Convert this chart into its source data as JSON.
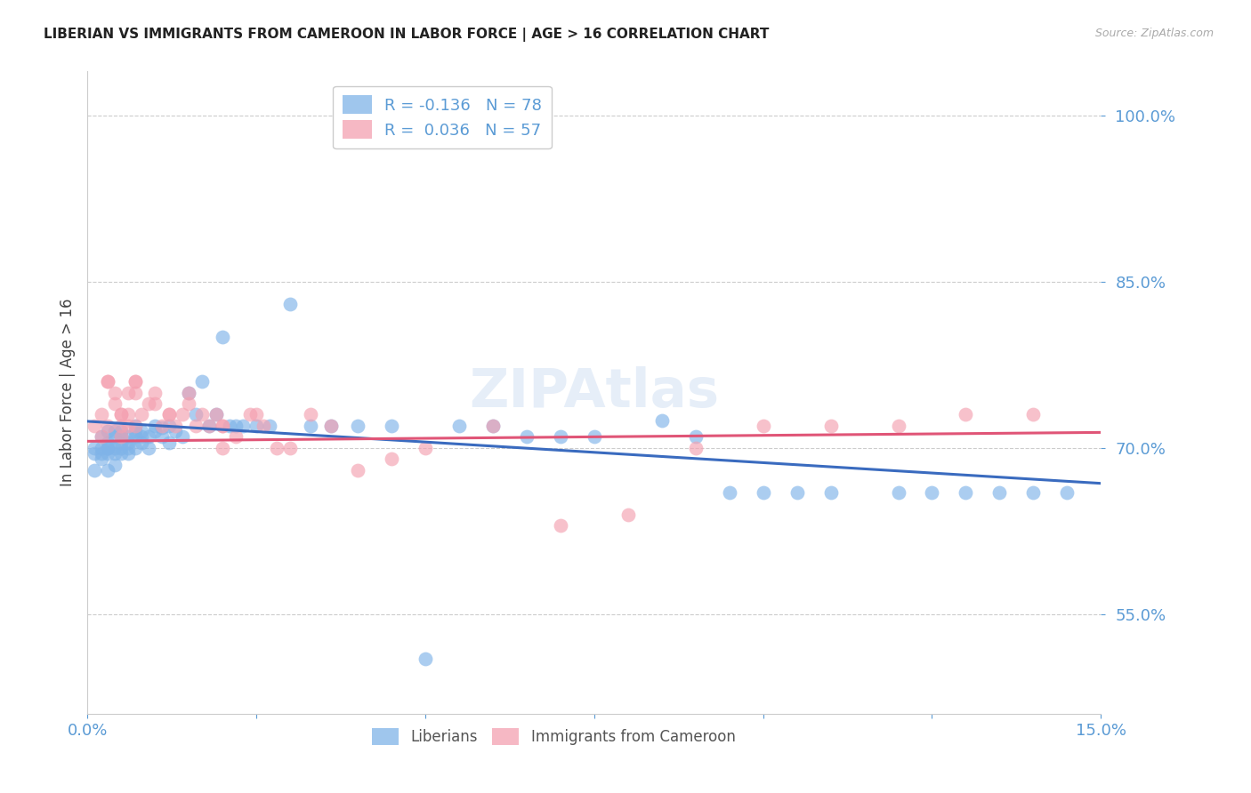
{
  "title": "LIBERIAN VS IMMIGRANTS FROM CAMEROON IN LABOR FORCE | AGE > 16 CORRELATION CHART",
  "source": "Source: ZipAtlas.com",
  "ylabel": "In Labor Force | Age > 16",
  "xlim": [
    0.0,
    0.15
  ],
  "ylim": [
    0.46,
    1.04
  ],
  "yticks": [
    0.55,
    0.7,
    0.85,
    1.0
  ],
  "ytick_labels": [
    "55.0%",
    "70.0%",
    "85.0%",
    "100.0%"
  ],
  "xticks": [
    0.0,
    0.025,
    0.05,
    0.075,
    0.1,
    0.125,
    0.15
  ],
  "watermark": "ZIPAtlas",
  "blue_color": "#7fb3e8",
  "pink_color": "#f4a0b0",
  "line_blue": "#3a6bbf",
  "line_pink": "#e05577",
  "axis_tick_color": "#5b9bd5",
  "grid_color": "#cccccc",
  "liberian_points_x": [
    0.001,
    0.001,
    0.001,
    0.002,
    0.002,
    0.002,
    0.002,
    0.003,
    0.003,
    0.003,
    0.003,
    0.003,
    0.003,
    0.004,
    0.004,
    0.004,
    0.004,
    0.004,
    0.005,
    0.005,
    0.005,
    0.005,
    0.005,
    0.006,
    0.006,
    0.006,
    0.006,
    0.007,
    0.007,
    0.007,
    0.007,
    0.008,
    0.008,
    0.008,
    0.009,
    0.009,
    0.01,
    0.01,
    0.011,
    0.011,
    0.012,
    0.012,
    0.013,
    0.014,
    0.015,
    0.016,
    0.017,
    0.018,
    0.019,
    0.02,
    0.021,
    0.022,
    0.023,
    0.025,
    0.027,
    0.03,
    0.033,
    0.036,
    0.04,
    0.045,
    0.05,
    0.055,
    0.06,
    0.065,
    0.07,
    0.075,
    0.085,
    0.09,
    0.095,
    0.1,
    0.105,
    0.11,
    0.12,
    0.125,
    0.13,
    0.135,
    0.14,
    0.145
  ],
  "liberian_points_y": [
    0.7,
    0.695,
    0.68,
    0.71,
    0.7,
    0.69,
    0.695,
    0.715,
    0.7,
    0.705,
    0.695,
    0.68,
    0.7,
    0.71,
    0.7,
    0.715,
    0.695,
    0.685,
    0.705,
    0.695,
    0.71,
    0.7,
    0.715,
    0.7,
    0.71,
    0.695,
    0.705,
    0.715,
    0.7,
    0.71,
    0.72,
    0.71,
    0.705,
    0.715,
    0.7,
    0.71,
    0.72,
    0.715,
    0.718,
    0.71,
    0.72,
    0.705,
    0.715,
    0.71,
    0.75,
    0.73,
    0.76,
    0.72,
    0.73,
    0.8,
    0.72,
    0.72,
    0.72,
    0.72,
    0.72,
    0.83,
    0.72,
    0.72,
    0.72,
    0.72,
    0.51,
    0.72,
    0.72,
    0.71,
    0.71,
    0.71,
    0.725,
    0.71,
    0.66,
    0.66,
    0.66,
    0.66,
    0.66,
    0.66,
    0.66,
    0.66,
    0.66,
    0.66
  ],
  "cameroon_points_x": [
    0.001,
    0.002,
    0.002,
    0.003,
    0.003,
    0.004,
    0.004,
    0.005,
    0.005,
    0.006,
    0.006,
    0.007,
    0.007,
    0.008,
    0.009,
    0.01,
    0.011,
    0.012,
    0.013,
    0.014,
    0.015,
    0.016,
    0.017,
    0.018,
    0.019,
    0.02,
    0.022,
    0.024,
    0.026,
    0.028,
    0.03,
    0.033,
    0.036,
    0.04,
    0.045,
    0.05,
    0.06,
    0.07,
    0.08,
    0.09,
    0.1,
    0.11,
    0.12,
    0.13,
    0.14,
    0.003,
    0.005,
    0.007,
    0.01,
    0.015,
    0.02,
    0.025,
    0.005,
    0.006,
    0.007,
    0.012,
    0.02
  ],
  "cameroon_points_y": [
    0.72,
    0.73,
    0.71,
    0.76,
    0.72,
    0.74,
    0.75,
    0.71,
    0.73,
    0.75,
    0.72,
    0.72,
    0.76,
    0.73,
    0.74,
    0.75,
    0.72,
    0.73,
    0.72,
    0.73,
    0.74,
    0.72,
    0.73,
    0.72,
    0.73,
    0.7,
    0.71,
    0.73,
    0.72,
    0.7,
    0.7,
    0.73,
    0.72,
    0.68,
    0.69,
    0.7,
    0.72,
    0.63,
    0.64,
    0.7,
    0.72,
    0.72,
    0.72,
    0.73,
    0.73,
    0.76,
    0.72,
    0.75,
    0.74,
    0.75,
    0.72,
    0.73,
    0.73,
    0.73,
    0.76,
    0.73,
    0.72
  ],
  "blue_line_x": [
    0.0,
    0.15
  ],
  "blue_line_y": [
    0.724,
    0.668
  ],
  "pink_line_x": [
    0.0,
    0.15
  ],
  "pink_line_y": [
    0.706,
    0.714
  ]
}
